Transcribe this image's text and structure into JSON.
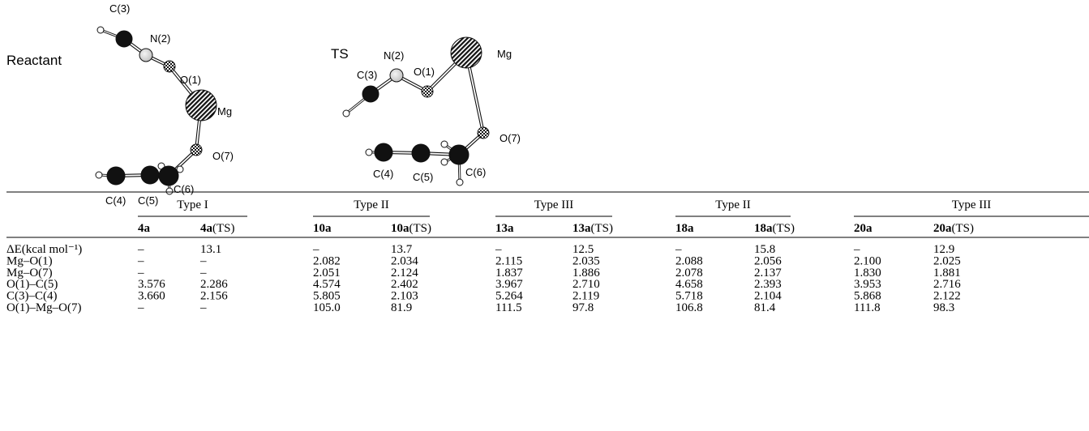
{
  "figure": {
    "panels": [
      {
        "label": "Reactant",
        "atoms": [
          "C(3)",
          "N(2)",
          "O(1)",
          "Mg",
          "O(7)",
          "C(4)",
          "C(5)",
          "C(6)"
        ]
      },
      {
        "label": "TS",
        "atoms": [
          "C(3)",
          "N(2)",
          "O(1)",
          "Mg",
          "O(7)",
          "C(4)",
          "C(5)",
          "C(6)"
        ]
      }
    ]
  },
  "table": {
    "groups": [
      "Type I",
      "Type II",
      "Type III",
      "Type II",
      "Type III"
    ],
    "columns": [
      {
        "id": "4a",
        "suffix": ""
      },
      {
        "id": "4a",
        "suffix": "(TS)"
      },
      {
        "id": "10a",
        "suffix": ""
      },
      {
        "id": "10a",
        "suffix": "(TS)"
      },
      {
        "id": "13a",
        "suffix": ""
      },
      {
        "id": "13a",
        "suffix": "(TS)"
      },
      {
        "id": "18a",
        "suffix": ""
      },
      {
        "id": "18a",
        "suffix": "(TS)"
      },
      {
        "id": "20a",
        "suffix": ""
      },
      {
        "id": "20a",
        "suffix": "(TS)"
      }
    ],
    "rows": [
      {
        "label": "ΔE(kcal mol⁻¹)",
        "cells": [
          "–",
          "13.1",
          "–",
          "13.7",
          "–",
          "12.5",
          "–",
          "15.8",
          "–",
          "12.9"
        ]
      },
      {
        "label": "Mg–O(1)",
        "cells": [
          "–",
          "–",
          "2.082",
          "2.034",
          "2.115",
          "2.035",
          "2.088",
          "2.056",
          "2.100",
          "2.025"
        ]
      },
      {
        "label": "Mg–O(7)",
        "cells": [
          "–",
          "–",
          "2.051",
          "2.124",
          "1.837",
          "1.886",
          "2.078",
          "2.137",
          "1.830",
          "1.881"
        ]
      },
      {
        "label": "O(1)–C(5)",
        "cells": [
          "3.576",
          "2.286",
          "4.574",
          "2.402",
          "3.967",
          "2.710",
          "4.658",
          "2.393",
          "3.953",
          "2.716"
        ]
      },
      {
        "label": "C(3)–C(4)",
        "cells": [
          "3.660",
          "2.156",
          "5.805",
          "2.103",
          "5.264",
          "2.119",
          "5.718",
          "2.104",
          "5.868",
          "2.122"
        ]
      },
      {
        "label": "O(1)–Mg–O(7)",
        "cells": [
          "–",
          "–",
          "105.0",
          "81.9",
          "111.5",
          "97.8",
          "106.8",
          "81.4",
          "111.8",
          "98.3"
        ]
      }
    ]
  }
}
